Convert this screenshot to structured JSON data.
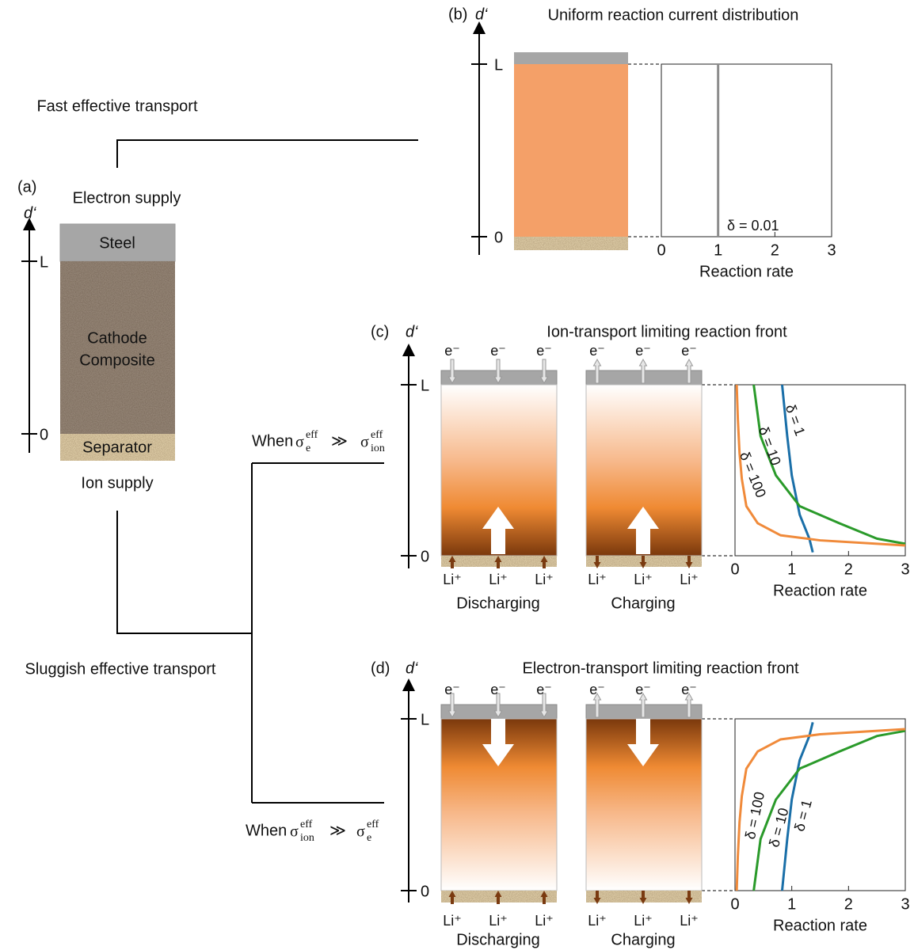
{
  "panel_a": {
    "label": "(a)",
    "axis_label": "d‘",
    "top_label": "Electron supply",
    "bottom_label": "Ion supply",
    "layers": {
      "steel": "Steel",
      "cathode": [
        "Cathode",
        "Composite"
      ],
      "separator": "Separator"
    },
    "ylim": [
      0,
      1
    ],
    "yticks": [
      {
        "value": 1,
        "label": "L"
      },
      0
    ]
  },
  "branches": {
    "fast": "Fast effective transport",
    "sluggish": "Sluggish effective transport",
    "condition_c": {
      "prefix": "When",
      "symbol_left": "σ",
      "sub_left": "e",
      "sup_left": "eff",
      "relation": "≫",
      "symbol_right": "σ",
      "sub_right": "ion",
      "sup_right": "eff"
    },
    "condition_d": {
      "prefix": "When",
      "symbol_left": "σ",
      "sub_left": "ion",
      "sup_left": "eff",
      "relation": "≫",
      "symbol_right": "σ",
      "sub_right": "e",
      "sup_right": "eff"
    }
  },
  "panel_b": {
    "label": "(b)",
    "axis_label": "d‘",
    "title": "Uniform reaction current distribution",
    "ylim": [
      0,
      1
    ],
    "yticks": [
      {
        "value": 1,
        "label": "L"
      },
      0
    ],
    "plot": {
      "type": "line",
      "xlabel": "Reaction rate",
      "xlim": [
        0,
        3
      ],
      "xticks": [
        0,
        1,
        2,
        3
      ],
      "series": [
        {
          "name": "δ = 0.01",
          "color": "#8c8c8c",
          "x": [
            1,
            1
          ],
          "y": [
            0,
            1
          ]
        }
      ]
    }
  },
  "panel_c": {
    "label": "(c)",
    "axis_label": "d‘",
    "title": "Ion-transport limiting reaction front",
    "ylim": [
      0,
      1
    ],
    "yticks": [
      {
        "value": 1,
        "label": "L"
      },
      0
    ],
    "columns": [
      {
        "electrons": [
          "e⁻",
          "e⁻",
          "e⁻"
        ],
        "ions": [
          "Li⁺",
          "Li⁺",
          "Li⁺"
        ],
        "caption": "Discharging"
      },
      {
        "electrons": [
          "e⁻",
          "e⁻",
          "e⁻"
        ],
        "ions": [
          "Li⁺",
          "Li⁺",
          "Li⁺"
        ],
        "caption": "Charging"
      }
    ],
    "plot": {
      "type": "line",
      "xlabel": "Reaction rate",
      "xlim": [
        0,
        3
      ],
      "xticks": [
        0,
        1,
        2,
        3
      ],
      "series": [
        {
          "name": "δ = 1",
          "color": "#1a6fa8",
          "x": [
            0.83,
            0.92,
            1.0,
            1.14,
            1.31,
            1.37
          ],
          "y": [
            1,
            0.7,
            0.47,
            0.24,
            0.1,
            0.02
          ]
        },
        {
          "name": "δ = 10",
          "color": "#2a9a2a",
          "x": [
            0.33,
            0.45,
            0.72,
            1.14,
            1.84,
            2.5,
            3
          ],
          "y": [
            1,
            0.7,
            0.47,
            0.29,
            0.19,
            0.1,
            0.07
          ]
        },
        {
          "name": "δ = 100",
          "color": "#f08a3a",
          "x": [
            0.03,
            0.05,
            0.08,
            0.12,
            0.2,
            0.4,
            0.8,
            1.5,
            3
          ],
          "y": [
            1,
            0.8,
            0.6,
            0.45,
            0.29,
            0.19,
            0.12,
            0.09,
            0.06
          ]
        }
      ]
    }
  },
  "panel_d": {
    "label": "(d)",
    "axis_label": "d‘",
    "title": "Electron-transport limiting reaction front",
    "ylim": [
      0,
      1
    ],
    "yticks": [
      {
        "value": 1,
        "label": "L"
      },
      0
    ],
    "columns": [
      {
        "electrons": [
          "e⁻",
          "e⁻",
          "e⁻"
        ],
        "ions": [
          "Li⁺",
          "Li⁺",
          "Li⁺"
        ],
        "caption": "Discharging"
      },
      {
        "electrons": [
          "e⁻",
          "e⁻",
          "e⁻"
        ],
        "ions": [
          "Li⁺",
          "Li⁺",
          "Li⁺"
        ],
        "caption": "Charging"
      }
    ],
    "plot": {
      "type": "line",
      "xlabel": "Reaction rate",
      "xlim": [
        0,
        3
      ],
      "xticks": [
        0,
        1,
        2,
        3
      ],
      "series": [
        {
          "name": "δ = 1",
          "color": "#1a6fa8",
          "x": [
            0.83,
            0.92,
            1.0,
            1.14,
            1.31,
            1.37
          ],
          "y": [
            0,
            0.3,
            0.53,
            0.76,
            0.9,
            0.98
          ]
        },
        {
          "name": "δ = 10",
          "color": "#2a9a2a",
          "x": [
            0.33,
            0.45,
            0.72,
            1.14,
            1.84,
            2.5,
            3
          ],
          "y": [
            0,
            0.3,
            0.53,
            0.71,
            0.81,
            0.9,
            0.93
          ]
        },
        {
          "name": "δ = 100",
          "color": "#f08a3a",
          "x": [
            0.03,
            0.05,
            0.08,
            0.12,
            0.2,
            0.4,
            0.8,
            1.5,
            3
          ],
          "y": [
            0,
            0.2,
            0.4,
            0.55,
            0.71,
            0.81,
            0.88,
            0.91,
            0.94
          ]
        }
      ]
    }
  }
}
